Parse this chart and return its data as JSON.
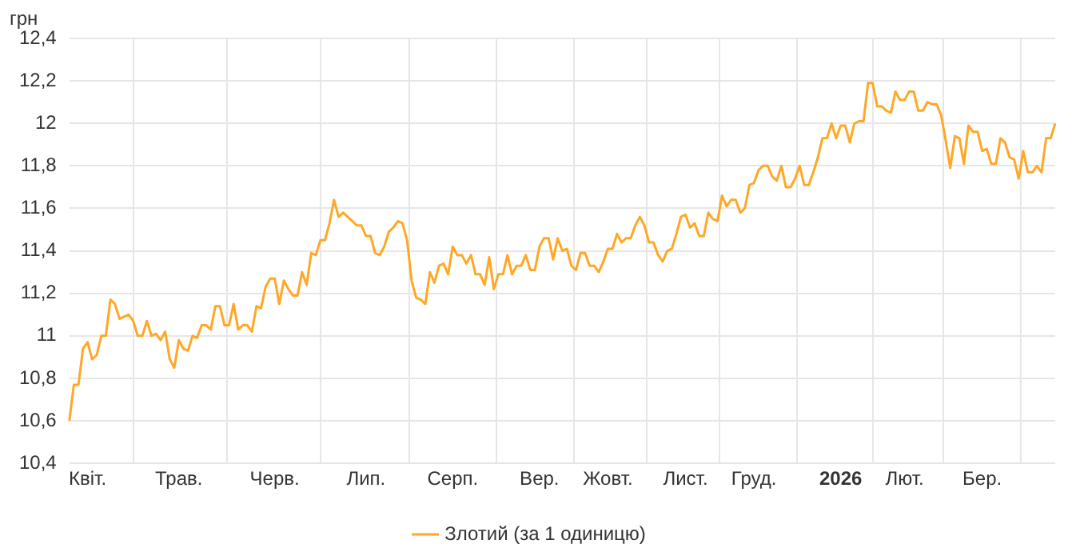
{
  "chart_data": {
    "type": "line",
    "ylabel": "грн",
    "categories": [
      null,
      null,
      null,
      null,
      "Квіт.",
      null,
      null,
      null,
      null,
      null,
      null,
      null,
      null,
      null,
      null,
      null,
      null,
      null,
      null,
      null,
      null,
      null,
      null,
      null,
      "Трав.",
      null,
      null,
      null,
      null,
      null,
      null,
      null,
      null,
      null,
      null,
      null,
      null,
      null,
      null,
      null,
      null,
      null,
      null,
      null,
      null,
      "Черв.",
      null,
      null,
      null,
      null,
      null,
      null,
      null,
      null,
      null,
      null,
      null,
      null,
      null,
      null,
      null,
      null,
      null,
      null,
      null,
      "Лип.",
      null,
      null,
      null,
      null,
      null,
      null,
      null,
      null,
      null,
      null,
      null,
      null,
      null,
      null,
      null,
      null,
      null,
      null,
      "Серп.",
      null,
      null,
      null,
      null,
      null,
      null,
      null,
      null,
      null,
      null,
      null,
      null,
      null,
      null,
      null,
      null,
      null,
      null,
      "Вер.",
      null,
      null,
      null,
      null,
      null,
      null,
      null,
      null,
      null,
      null,
      null,
      null,
      null,
      null,
      "Жовт.",
      null,
      null,
      null,
      null,
      null,
      null,
      null,
      null,
      null,
      null,
      null,
      null,
      null,
      null,
      null,
      null,
      "Лист.",
      null,
      null,
      null,
      null,
      null,
      null,
      null,
      null,
      null,
      null,
      null,
      null,
      null,
      null,
      "Груд.",
      null,
      null,
      null,
      null,
      null,
      null,
      null,
      null,
      null,
      null,
      null,
      null,
      null,
      null,
      null,
      null,
      null,
      null,
      "2026",
      null,
      null,
      null,
      null,
      null,
      null,
      null,
      null,
      null,
      null,
      null,
      null,
      null,
      "Лют.",
      null,
      null,
      null,
      null,
      null,
      null,
      null,
      null,
      null,
      null,
      null,
      null,
      null,
      null,
      null,
      null,
      "Бер.",
      null,
      null,
      null,
      null,
      null,
      null,
      null,
      null,
      null,
      null,
      null,
      null,
      null,
      null,
      null,
      null
    ],
    "series": [
      {
        "name": "Злотий (за 1 одиницю)",
        "color": "#ffa726",
        "values": [
          10.6,
          10.77,
          10.77,
          10.94,
          10.97,
          10.89,
          10.91,
          11.0,
          11.0,
          11.17,
          11.15,
          11.08,
          11.09,
          11.1,
          11.07,
          11.0,
          11.0,
          11.07,
          11.0,
          11.01,
          10.98,
          11.02,
          10.89,
          10.85,
          10.98,
          10.94,
          10.93,
          11.0,
          10.99,
          11.05,
          11.05,
          11.03,
          11.14,
          11.14,
          11.05,
          11.05,
          11.15,
          11.03,
          11.05,
          11.05,
          11.02,
          11.14,
          11.13,
          11.23,
          11.27,
          11.27,
          11.15,
          11.26,
          11.22,
          11.19,
          11.19,
          11.3,
          11.24,
          11.39,
          11.38,
          11.45,
          11.45,
          11.53,
          11.64,
          11.56,
          11.58,
          11.56,
          11.54,
          11.52,
          11.52,
          11.47,
          11.47,
          11.39,
          11.38,
          11.42,
          11.49,
          11.51,
          11.54,
          11.53,
          11.45,
          11.26,
          11.18,
          11.17,
          11.15,
          11.3,
          11.25,
          11.33,
          11.34,
          11.29,
          11.42,
          11.38,
          11.38,
          11.34,
          11.38,
          11.29,
          11.29,
          11.24,
          11.37,
          11.22,
          11.29,
          11.29,
          11.38,
          11.29,
          11.33,
          11.33,
          11.38,
          11.31,
          11.31,
          11.42,
          11.46,
          11.46,
          11.36,
          11.46,
          11.4,
          11.41,
          11.33,
          11.31,
          11.39,
          11.39,
          11.33,
          11.33,
          11.3,
          11.35,
          11.41,
          11.41,
          11.48,
          11.44,
          11.46,
          11.46,
          11.52,
          11.56,
          11.52,
          11.44,
          11.44,
          11.38,
          11.35,
          11.4,
          11.41,
          11.48,
          11.56,
          11.57,
          11.51,
          11.53,
          11.47,
          11.47,
          11.58,
          11.55,
          11.54,
          11.66,
          11.61,
          11.64,
          11.64,
          11.58,
          11.6,
          11.71,
          11.72,
          11.78,
          11.8,
          11.8,
          11.75,
          11.73,
          11.8,
          11.7,
          11.7,
          11.74,
          11.8,
          11.71,
          11.71,
          11.77,
          11.84,
          11.93,
          11.93,
          12.0,
          11.93,
          11.99,
          11.99,
          11.91,
          12.0,
          12.01,
          12.01,
          12.19,
          12.19,
          12.08,
          12.08,
          12.06,
          12.05,
          12.15,
          12.11,
          12.11,
          12.15,
          12.15,
          12.06,
          12.06,
          12.1,
          12.09,
          12.09,
          12.04,
          11.92,
          11.79,
          11.94,
          11.93,
          11.81,
          11.99,
          11.96,
          11.96,
          11.87,
          11.88,
          11.81,
          11.81,
          11.93,
          11.91,
          11.84,
          11.83,
          11.74,
          11.87,
          11.77,
          11.77,
          11.8,
          11.77,
          11.93,
          11.93,
          12.0
        ]
      }
    ],
    "ylim": [
      10.4,
      12.4
    ],
    "yticks": [
      {
        "value": 10.4,
        "label": "10,4"
      },
      {
        "value": 10.6,
        "label": "10,6"
      },
      {
        "value": 10.8,
        "label": "10,8"
      },
      11,
      {
        "value": 11.2,
        "label": "11,2"
      },
      {
        "value": 11.4,
        "label": "11,4"
      },
      {
        "value": 11.6,
        "label": "11,6"
      },
      {
        "value": 11.8,
        "label": "11,8"
      },
      12,
      {
        "value": 12.2,
        "label": "12,2"
      },
      {
        "value": 12.4,
        "label": "12,4"
      }
    ],
    "grid": true,
    "legend": "bottom",
    "marker": "none",
    "line_style": "solid"
  }
}
